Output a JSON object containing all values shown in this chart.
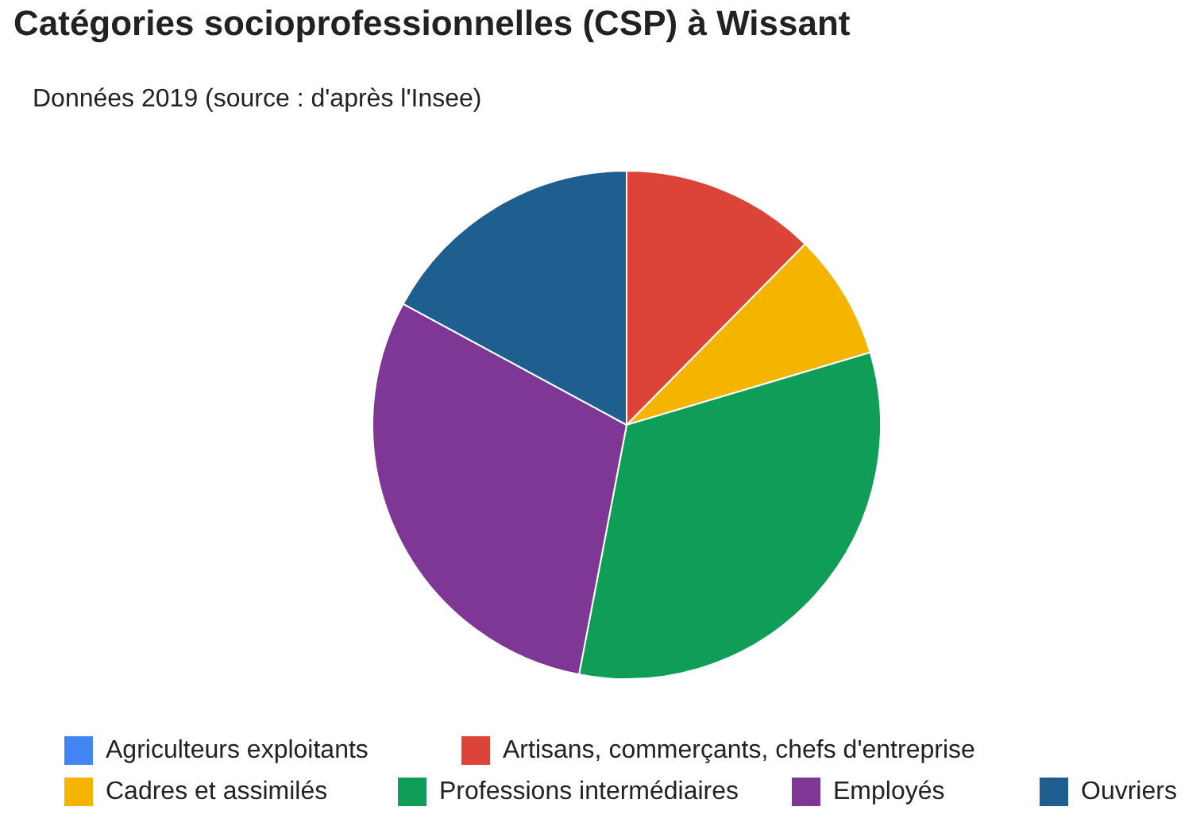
{
  "chart_data": {
    "type": "pie",
    "title": "Catégories socioprofessionnelles (CSP) à Wissant",
    "subtitle": "Données 2019 (source : d'après l'Insee)",
    "categories": [
      "Agriculteurs exploitants",
      "Artisans, commerçants, chefs d'entreprise",
      "Cadres et assimilés",
      "Professions intermédiaires",
      "Employés",
      "Ouvriers"
    ],
    "values": [
      0,
      12.4,
      8.0,
      32.6,
      29.9,
      17.1
    ],
    "colors": [
      "#4285f4",
      "#db4437",
      "#f4b400",
      "#0f9d58",
      "#7e3794",
      "#1f5f8f"
    ],
    "legend": "bottom"
  }
}
